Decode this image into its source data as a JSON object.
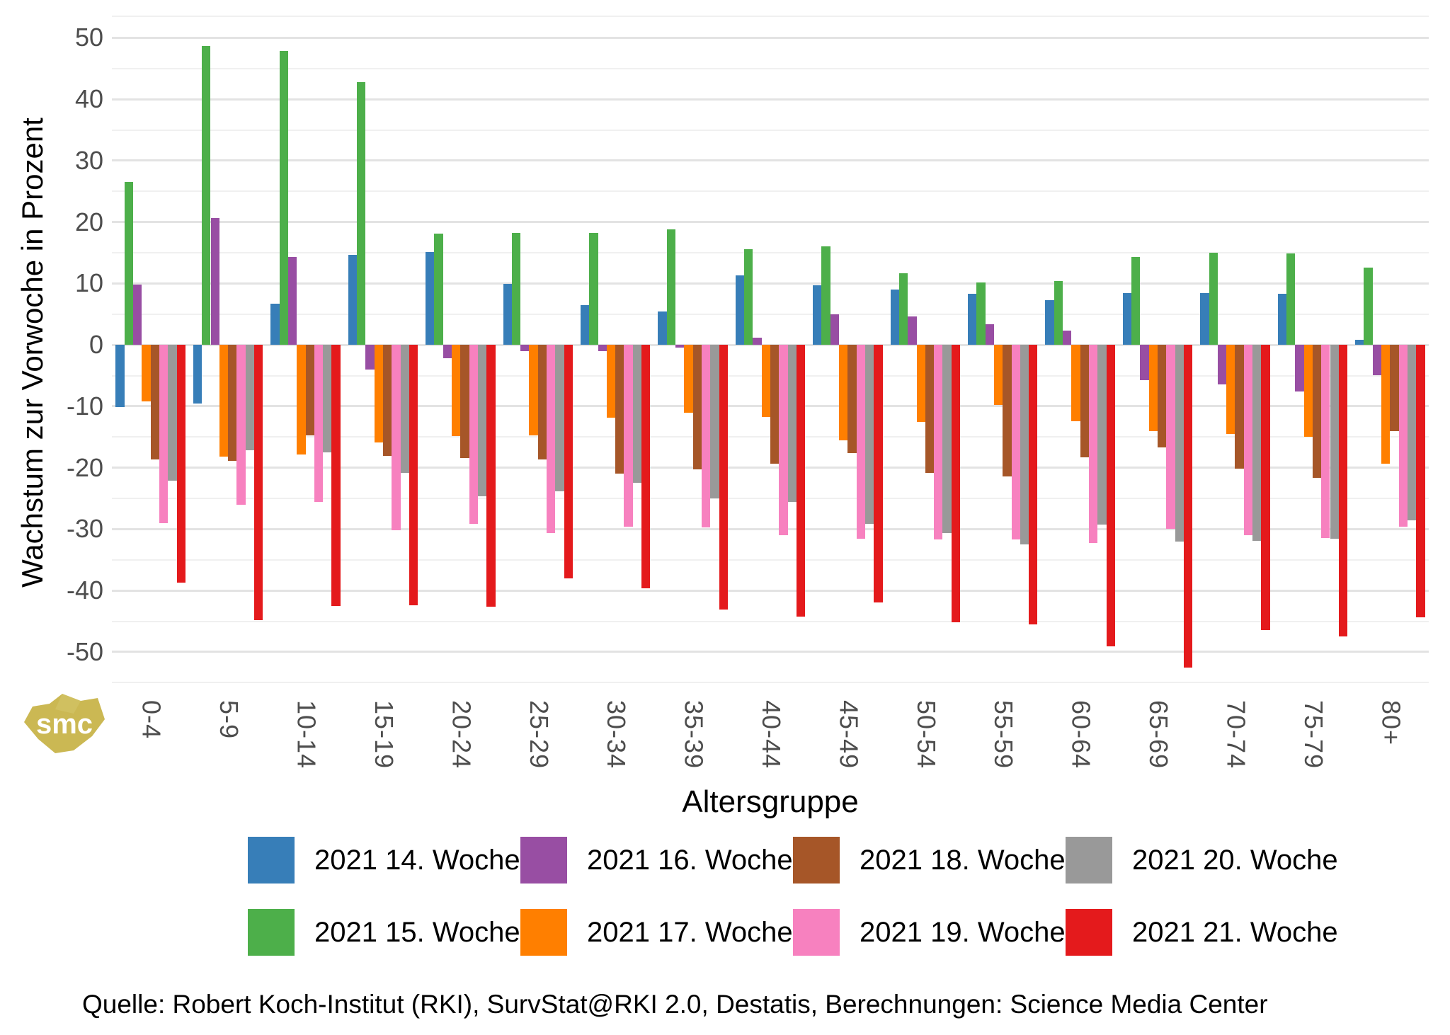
{
  "chart_data": {
    "type": "bar",
    "title": "",
    "xlabel": "Altersgruppe",
    "ylabel": "Wachstum zur Vorwoche in Prozent",
    "ylim": [
      -56,
      53.5
    ],
    "yticks": [
      50,
      40,
      30,
      20,
      10,
      0,
      -10,
      -20,
      -30,
      -40,
      -50
    ],
    "minor_gridlines": [
      45,
      35,
      25,
      15,
      5,
      -5,
      -15,
      -25,
      -35,
      -45,
      -55
    ],
    "grid": "on",
    "legend_position": "bottom",
    "categories": [
      "0-4",
      "5-9",
      "10-14",
      "15-19",
      "20-24",
      "25-29",
      "30-34",
      "35-39",
      "40-44",
      "45-49",
      "50-54",
      "55-59",
      "60-64",
      "65-69",
      "70-74",
      "75-79",
      "80+"
    ],
    "series": [
      {
        "name": "2021 14. Woche",
        "color": "#377EB8",
        "values": [
          -10.1,
          -9.6,
          6.7,
          14.7,
          15.1,
          9.9,
          6.5,
          5.4,
          11.3,
          9.7,
          9.0,
          8.3,
          7.3,
          8.4,
          8.4,
          8.3,
          0.8
        ]
      },
      {
        "name": "2021 15. Woche",
        "color": "#4DAF4A",
        "values": [
          26.5,
          48.7,
          47.9,
          42.8,
          18.1,
          18.2,
          18.2,
          18.8,
          15.6,
          16.0,
          11.7,
          10.2,
          10.4,
          14.3,
          15.0,
          14.9,
          12.6
        ]
      },
      {
        "name": "2021 16. Woche",
        "color": "#984EA3",
        "values": [
          9.8,
          20.6,
          14.3,
          -4.0,
          -2.2,
          -1.0,
          -1.0,
          -0.4,
          1.2,
          5.0,
          4.6,
          3.4,
          2.3,
          -5.8,
          -6.4,
          -7.6,
          -4.9
        ]
      },
      {
        "name": "2021 17. Woche",
        "color": "#FF7F00",
        "values": [
          -9.2,
          -18.2,
          -17.9,
          -15.9,
          -14.8,
          -14.7,
          -11.8,
          -11.0,
          -11.7,
          -15.6,
          -12.6,
          -9.8,
          -12.4,
          -14.0,
          -14.5,
          -15.0,
          -19.4
        ]
      },
      {
        "name": "2021 18. Woche",
        "color": "#A65628",
        "values": [
          -18.7,
          -18.9,
          -14.7,
          -18.1,
          -18.4,
          -18.7,
          -21.0,
          -20.3,
          -19.4,
          -17.6,
          -20.8,
          -21.4,
          -18.3,
          -16.7,
          -20.2,
          -21.7,
          -14.1
        ]
      },
      {
        "name": "2021 19. Woche",
        "color": "#F781BF",
        "values": [
          -29.0,
          -26.0,
          -25.6,
          -30.2,
          -29.2,
          -30.6,
          -29.6,
          -29.7,
          -31.0,
          -31.6,
          -31.7,
          -31.7,
          -32.2,
          -30.0,
          -31.0,
          -31.5,
          -29.6
        ]
      },
      {
        "name": "2021 20. Woche",
        "color": "#999999",
        "values": [
          -22.1,
          -17.2,
          -17.5,
          -20.8,
          -24.7,
          -23.9,
          -22.5,
          -25.0,
          -25.6,
          -29.1,
          -30.6,
          -32.5,
          -29.3,
          -32.0,
          -31.9,
          -31.6,
          -28.6
        ]
      },
      {
        "name": "2021 21. Woche",
        "color": "#E41A1C",
        "values": [
          -38.7,
          -44.8,
          -42.5,
          -42.4,
          -42.6,
          -38.0,
          -39.6,
          -43.1,
          -44.3,
          -41.9,
          -45.2,
          -45.5,
          -49.1,
          -52.5,
          -46.4,
          -47.5,
          -44.4
        ]
      }
    ]
  },
  "axes": {
    "y_title": "Wachstum zur Vorwoche in Prozent",
    "x_title": "Altersgruppe"
  },
  "source_note": "Quelle: Robert Koch-Institut (RKI), SurvStat@RKI 2.0, Destatis, Berechnungen: Science Media Center",
  "logo": {
    "text": "smc",
    "color": "#CBB853"
  }
}
